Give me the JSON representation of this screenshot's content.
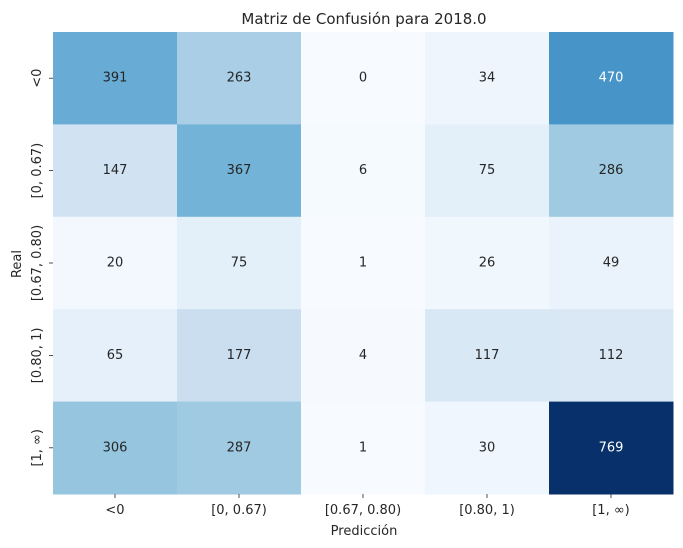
{
  "chart_data": {
    "type": "heatmap",
    "title": "Matriz de Confusión para 2018.0",
    "xlabel": "Predicción",
    "ylabel": "Real",
    "x_categories": [
      "<0",
      "[0, 0.67)",
      "[0.67, 0.80)",
      "[0.80, 1)",
      "[1, ∞)"
    ],
    "y_categories": [
      "<0",
      "[0, 0.67)",
      "[0.67, 0.80)",
      "[0.80, 1)",
      "[1, ∞)"
    ],
    "values": [
      [
        391,
        263,
        0,
        34,
        470
      ],
      [
        147,
        367,
        6,
        75,
        286
      ],
      [
        20,
        75,
        1,
        26,
        49
      ],
      [
        65,
        177,
        4,
        117,
        112
      ],
      [
        306,
        287,
        1,
        30,
        769
      ]
    ],
    "value_range": [
      0,
      769
    ],
    "colormap": "Blues",
    "colorbar": false,
    "annotations": true
  }
}
